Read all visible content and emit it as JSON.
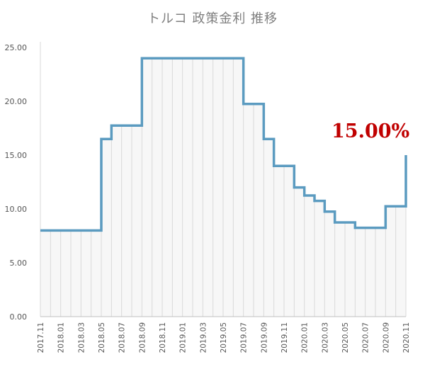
{
  "chart_data": {
    "type": "line",
    "step": true,
    "title": "トルコ 政策金利 推移",
    "xlabel": "",
    "ylabel": "",
    "ylim": [
      0,
      25
    ],
    "yticks": [
      "0.00",
      "5.00",
      "10.00",
      "15.00",
      "20.00",
      "25.00"
    ],
    "x_tick_labels": [
      "2017.11",
      "2018.01",
      "2018.03",
      "2018.05",
      "2018.07",
      "2018.09",
      "2018.11",
      "2019.01",
      "2019.03",
      "2019.05",
      "2019.07",
      "2019.09",
      "2019.11",
      "2020.01",
      "2020.03",
      "2020.05",
      "2020.07",
      "2020.09",
      "2020.11"
    ],
    "x": [
      "2017.11",
      "2017.12",
      "2018.01",
      "2018.02",
      "2018.03",
      "2018.04",
      "2018.05",
      "2018.06",
      "2018.07",
      "2018.08",
      "2018.09",
      "2018.10",
      "2018.11",
      "2018.12",
      "2019.01",
      "2019.02",
      "2019.03",
      "2019.04",
      "2019.05",
      "2019.06",
      "2019.07",
      "2019.08",
      "2019.09",
      "2019.10",
      "2019.11",
      "2019.12",
      "2020.01",
      "2020.02",
      "2020.03",
      "2020.04",
      "2020.05",
      "2020.06",
      "2020.07",
      "2020.08",
      "2020.09",
      "2020.10",
      "2020.11"
    ],
    "series": [
      {
        "values": [
          8.0,
          8.0,
          8.0,
          8.0,
          8.0,
          8.0,
          16.5,
          17.75,
          17.75,
          17.75,
          24.0,
          24.0,
          24.0,
          24.0,
          24.0,
          24.0,
          24.0,
          24.0,
          24.0,
          24.0,
          19.75,
          19.75,
          16.5,
          14.0,
          14.0,
          12.0,
          11.25,
          10.75,
          9.75,
          8.75,
          8.75,
          8.25,
          8.25,
          8.25,
          10.25,
          10.25,
          15.0
        ],
        "color": "#5b9bc0"
      }
    ],
    "annotation": "15.00%",
    "annotation_color": "#c00000",
    "grid": "vertical",
    "gridline_color": "#d9d9d9",
    "area_fill_color": "#eeeeee"
  }
}
